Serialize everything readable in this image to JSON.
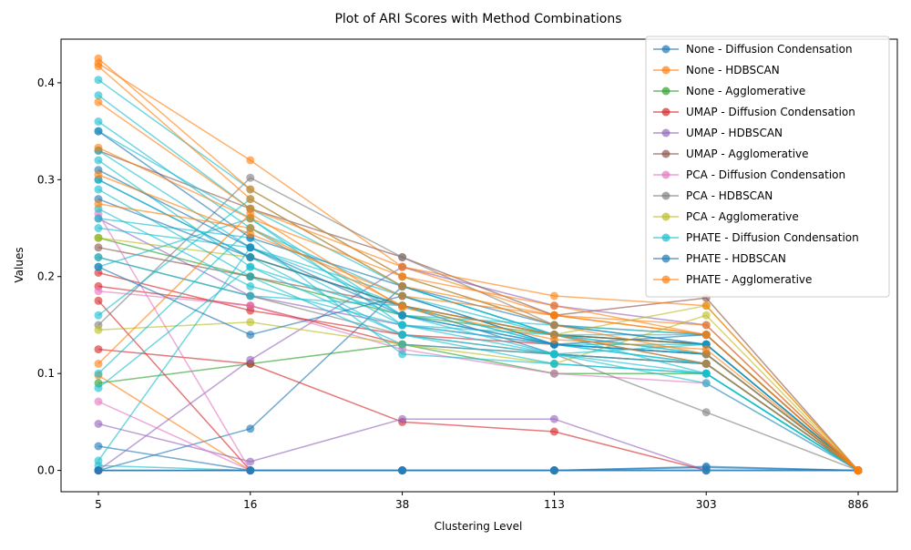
{
  "chart_data": {
    "type": "line",
    "title": "Plot of ARI Scores with Method Combinations",
    "xlabel": "Clustering Level",
    "ylabel": "Values",
    "x_categories": [
      "5",
      "16",
      "38",
      "113",
      "303",
      "886"
    ],
    "ylim": [
      -0.022,
      0.445
    ],
    "yticks": [
      0.0,
      0.1,
      0.2,
      0.3,
      0.4
    ],
    "ytick_labels": [
      "0.0",
      "0.1",
      "0.2",
      "0.3",
      "0.4"
    ],
    "legend_position": "top-right",
    "grid": false,
    "series": [
      {
        "name": "None - Diffusion Condensation",
        "color": "#1f77b4",
        "runs": [
          [
            0.3,
            0.22,
            0.17,
            0.12,
            0.11,
            0.0
          ],
          [
            0.025,
            0.0,
            0.0,
            0.0,
            0.0,
            0.0
          ],
          [
            0.0,
            0.043,
            0.19,
            0.14,
            0.13,
            0.0
          ],
          [
            0.0,
            0.0,
            0.0,
            0.0,
            0.004,
            0.0
          ]
        ]
      },
      {
        "name": "None - HDBSCAN",
        "color": "#ff7f0e",
        "runs": [
          [
            0.0,
            0.0,
            0.0,
            0.0,
            0.0,
            0.0
          ],
          [
            0.42,
            0.32,
            0.21,
            0.16,
            0.14,
            0.0
          ],
          [
            0.098,
            0.0,
            0.0,
            0.0,
            0.0,
            0.0
          ]
        ]
      },
      {
        "name": "None - Agglomerative",
        "color": "#2ca02c",
        "runs": [
          [
            0.09,
            0.11,
            0.13,
            0.1,
            0.1,
            0.0
          ],
          [
            0.24,
            0.2,
            0.16,
            0.14,
            0.13,
            0.0
          ]
        ]
      },
      {
        "name": "UMAP - Diffusion Condensation",
        "color": "#d62728",
        "runs": [
          [
            0.19,
            0.17,
            0.13,
            0.12,
            0.11,
            0.0
          ],
          [
            0.204,
            0.165,
            0.14,
            0.13,
            0.12,
            0.0
          ],
          [
            0.175,
            0.0,
            0.0,
            0.0,
            0.0,
            0.0
          ],
          [
            0.125,
            0.11,
            0.05,
            0.04,
            0.0,
            0.0
          ]
        ]
      },
      {
        "name": "UMAP - HDBSCAN",
        "color": "#9467bd",
        "runs": [
          [
            0.048,
            0.009,
            0.053,
            0.053,
            0.0,
            0.0
          ],
          [
            0.0,
            0.114,
            0.21,
            0.17,
            0.15,
            0.0
          ],
          [
            0.26,
            0.18,
            0.15,
            0.13,
            0.12,
            0.0
          ]
        ]
      },
      {
        "name": "UMAP - Agglomerative",
        "color": "#8c564b",
        "runs": [
          [
            0.33,
            0.27,
            0.22,
            0.16,
            0.178,
            0.0
          ],
          [
            0.23,
            0.2,
            0.17,
            0.14,
            0.13,
            0.0
          ]
        ]
      },
      {
        "name": "PCA - Diffusion Condensation",
        "color": "#e377c2",
        "runs": [
          [
            0.071,
            0.0,
            0.0,
            0.0,
            0.0,
            0.0
          ],
          [
            0.185,
            0.17,
            0.125,
            0.1,
            0.09,
            0.0
          ],
          [
            0.265,
            0.0,
            0.0,
            0.0,
            0.0,
            0.0
          ]
        ]
      },
      {
        "name": "PCA - HDBSCAN",
        "color": "#7f7f7f",
        "runs": [
          [
            0.15,
            0.302,
            0.22,
            0.15,
            0.14,
            0.0
          ],
          [
            0.22,
            0.18,
            0.14,
            0.12,
            0.06,
            0.0
          ]
        ]
      },
      {
        "name": "PCA - Agglomerative",
        "color": "#bcbd22",
        "runs": [
          [
            0.145,
            0.153,
            0.13,
            0.11,
            0.16,
            0.0
          ],
          [
            0.24,
            0.22,
            0.17,
            0.14,
            0.17,
            0.0
          ]
        ]
      },
      {
        "name": "PHATE - Diffusion Condensation",
        "color": "#17becf",
        "runs": [
          [
            0.403,
            0.29,
            0.2,
            0.15,
            0.14,
            0.0
          ],
          [
            0.387,
            0.27,
            0.19,
            0.14,
            0.12,
            0.0
          ],
          [
            0.36,
            0.25,
            0.18,
            0.13,
            0.11,
            0.0
          ],
          [
            0.35,
            0.26,
            0.15,
            0.12,
            0.1,
            0.0
          ],
          [
            0.33,
            0.23,
            0.17,
            0.13,
            0.12,
            0.0
          ],
          [
            0.32,
            0.21,
            0.16,
            0.12,
            0.09,
            0.0
          ],
          [
            0.3,
            0.22,
            0.14,
            0.11,
            0.1,
            0.0
          ],
          [
            0.29,
            0.2,
            0.13,
            0.12,
            0.13,
            0.0
          ],
          [
            0.27,
            0.19,
            0.15,
            0.13,
            0.11,
            0.0
          ],
          [
            0.26,
            0.24,
            0.12,
            0.11,
            0.1,
            0.0
          ],
          [
            0.25,
            0.23,
            0.18,
            0.14,
            0.14,
            0.0
          ],
          [
            0.22,
            0.18,
            0.17,
            0.13,
            0.12,
            0.0
          ],
          [
            0.21,
            0.26,
            0.16,
            0.15,
            0.13,
            0.0
          ],
          [
            0.16,
            0.28,
            0.19,
            0.14,
            0.12,
            0.0
          ],
          [
            0.1,
            0.25,
            0.16,
            0.13,
            0.13,
            0.0
          ],
          [
            0.085,
            0.21,
            0.14,
            0.12,
            0.11,
            0.0
          ],
          [
            0.01,
            0.23,
            0.15,
            0.14,
            0.1,
            0.0
          ],
          [
            0.005,
            0.0,
            0.0,
            0.0,
            0.0,
            0.0
          ]
        ]
      },
      {
        "name": "PHATE - HDBSCAN",
        "color": "#1f77b4",
        "runs": [
          [
            0.0,
            0.0,
            0.0,
            0.0,
            0.0,
            0.0
          ],
          [
            0.0,
            0.0,
            0.0,
            0.0,
            0.003,
            0.0
          ],
          [
            0.35,
            0.24,
            0.19,
            0.15,
            0.13,
            0.0
          ],
          [
            0.31,
            0.23,
            0.16,
            0.13,
            0.12,
            0.0
          ],
          [
            0.28,
            0.22,
            0.17,
            0.14,
            0.11,
            0.0
          ],
          [
            0.21,
            0.14,
            0.18,
            0.13,
            0.14,
            0.0
          ]
        ]
      },
      {
        "name": "PHATE - Agglomerative",
        "color": "#ff7f0e",
        "runs": [
          [
            0.425,
            0.29,
            0.2,
            0.17,
            0.14,
            0.0
          ],
          [
            0.417,
            0.28,
            0.19,
            0.16,
            0.15,
            0.0
          ],
          [
            0.38,
            0.27,
            0.21,
            0.18,
            0.17,
            0.0
          ],
          [
            0.333,
            0.26,
            0.2,
            0.15,
            0.12,
            0.0
          ],
          [
            0.305,
            0.244,
            0.18,
            0.16,
            0.14,
            0.0
          ],
          [
            0.275,
            0.25,
            0.17,
            0.14,
            0.11,
            0.0
          ],
          [
            0.11,
            0.265,
            0.168,
            0.135,
            0.125,
            0.0
          ]
        ]
      }
    ]
  }
}
